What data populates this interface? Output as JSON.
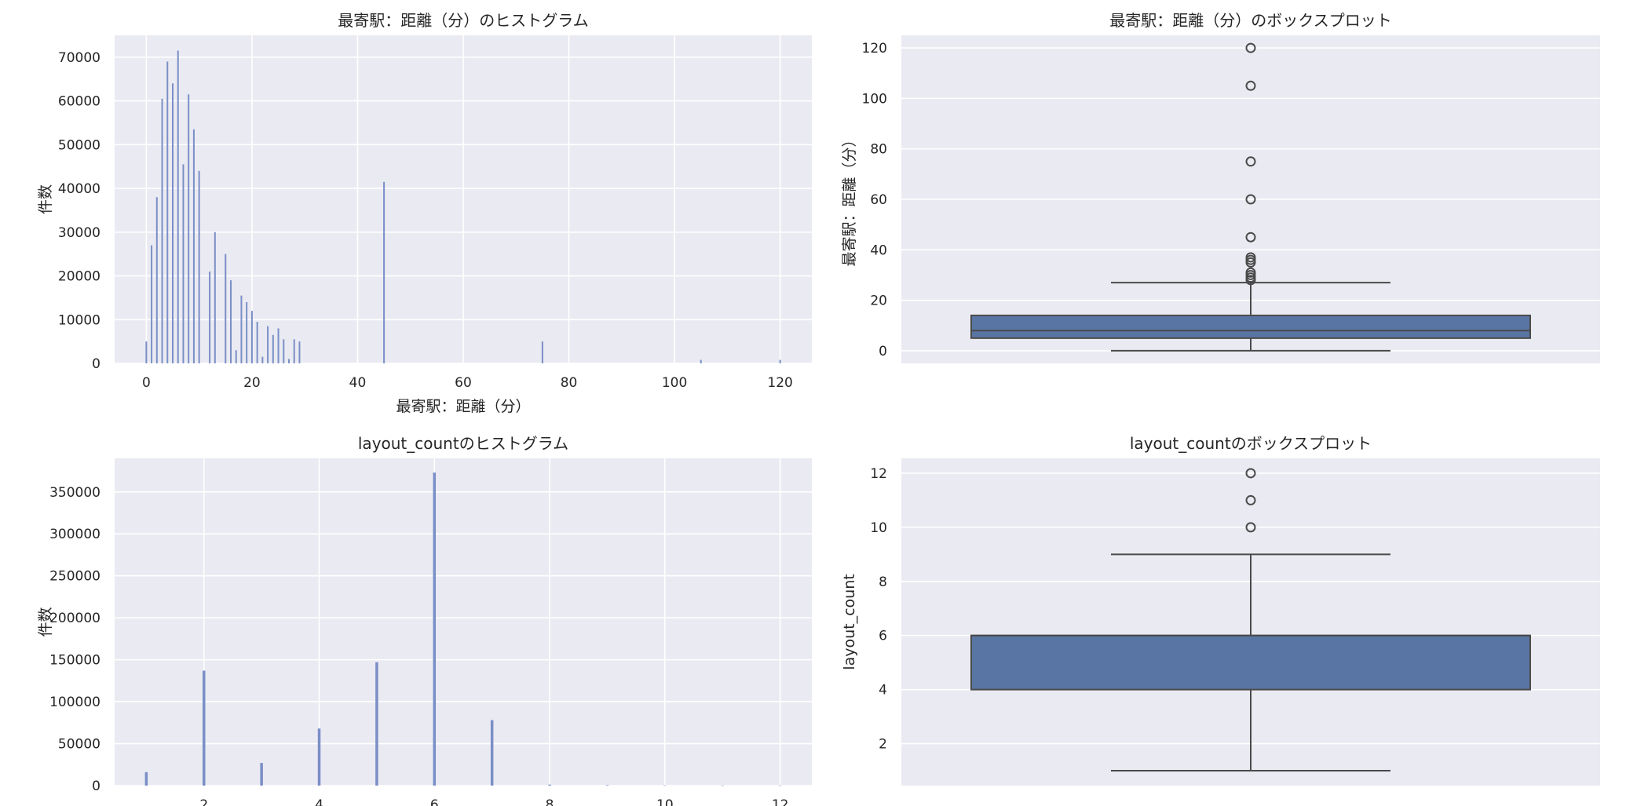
{
  "colors": {
    "panel_bg": "#eaeaf2",
    "grid": "#ffffff",
    "bar": "#7a8fc7",
    "box_fill": "#5975a4",
    "box_line": "#4a4a4a",
    "text": "#262626"
  },
  "chart_data": [
    {
      "id": "hist-distance",
      "type": "bar",
      "subtype": "histogram",
      "title": "最寄駅：距離（分）のヒストグラム",
      "xlabel": "最寄駅：距離（分）",
      "ylabel": "件数",
      "xlim": [
        -6,
        126
      ],
      "ylim": [
        0,
        75000
      ],
      "xticks": [
        0,
        20,
        40,
        60,
        80,
        100,
        120
      ],
      "yticks": [
        0,
        10000,
        20000,
        30000,
        40000,
        50000,
        60000,
        70000
      ],
      "ytick_labels": [
        "0",
        "10000",
        "20000",
        "30000",
        "40000",
        "50000",
        "60000",
        "70000"
      ],
      "grid": true,
      "x": [
        0,
        1,
        2,
        3,
        4,
        5,
        6,
        7,
        8,
        9,
        10,
        12,
        13,
        15,
        16,
        17,
        18,
        19,
        20,
        21,
        22,
        23,
        24,
        25,
        26,
        27,
        28,
        29,
        45,
        75,
        105,
        120
      ],
      "values": [
        5000,
        27000,
        38000,
        60500,
        69000,
        64000,
        71500,
        45500,
        61500,
        53500,
        44000,
        21000,
        30000,
        25000,
        19000,
        3000,
        15500,
        14000,
        12000,
        9500,
        1500,
        8500,
        6500,
        8000,
        5500,
        1000,
        5500,
        5000,
        41500,
        5000,
        800,
        800
      ]
    },
    {
      "id": "box-distance",
      "type": "boxplot",
      "title": "最寄駅：距離（分）のボックスプロット",
      "xlabel": "",
      "ylabel": "最寄駅：距離（分）",
      "ylim": [
        -5,
        125
      ],
      "yticks": [
        0,
        20,
        40,
        60,
        80,
        100,
        120
      ],
      "grid": true,
      "whisker_low": 0,
      "q1": 5,
      "median": 8,
      "q3": 14,
      "whisker_high": 27,
      "outliers": [
        28,
        29,
        30,
        31,
        35,
        36,
        37,
        45,
        60,
        75,
        105,
        120
      ]
    },
    {
      "id": "hist-layout",
      "type": "bar",
      "subtype": "histogram",
      "title": "layout_countのヒストグラム",
      "xlabel": "",
      "ylabel": "件数",
      "xlim": [
        0.45,
        12.55
      ],
      "ylim": [
        0,
        390000
      ],
      "xticks": [
        2,
        4,
        6,
        8,
        10,
        12
      ],
      "yticks": [
        0,
        50000,
        100000,
        150000,
        200000,
        250000,
        300000,
        350000
      ],
      "ytick_labels": [
        "0",
        "50000",
        "100000",
        "150000",
        "200000",
        "250000",
        "300000",
        "350000"
      ],
      "grid": true,
      "x": [
        1,
        2,
        3,
        4,
        5,
        6,
        7,
        8,
        9,
        10,
        11,
        12
      ],
      "values": [
        16000,
        137000,
        27000,
        68000,
        147000,
        373000,
        78000,
        1200,
        600,
        300,
        150,
        100
      ]
    },
    {
      "id": "box-layout",
      "type": "boxplot",
      "title": "layout_countのボックスプロット",
      "xlabel": "",
      "ylabel": "layout_count",
      "ylim": [
        0.45,
        12.55
      ],
      "yticks": [
        2,
        4,
        6,
        8,
        10,
        12
      ],
      "grid": true,
      "whisker_low": 1,
      "q1": 4,
      "median": 6,
      "q3": 6,
      "whisker_high": 9,
      "outliers": [
        10,
        11,
        12
      ]
    }
  ]
}
